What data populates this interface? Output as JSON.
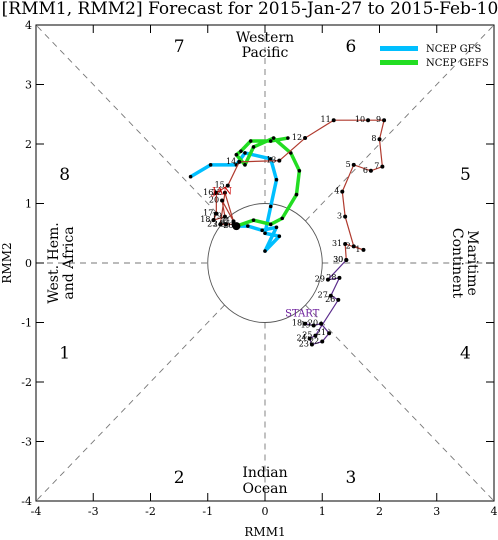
{
  "chart_data": {
    "type": "line",
    "title": "[RMM1, RMM2] Forecast for 2015-Jan-27 to 2015-Feb-10",
    "xlabel": "RMM1",
    "ylabel": "RMM2",
    "xlim": [
      -4,
      4
    ],
    "ylim": [
      -4,
      4
    ],
    "xticks": [
      -4,
      -3,
      -2,
      -1,
      0,
      1,
      2,
      3,
      4
    ],
    "yticks": [
      -4,
      -3,
      -2,
      -1,
      0,
      1,
      2,
      3,
      4
    ],
    "unit_circle_radius": 1,
    "phase_numbers": [
      {
        "label": "1",
        "x": -3.5,
        "y": -1.5
      },
      {
        "label": "2",
        "x": -1.5,
        "y": -3.6
      },
      {
        "label": "3",
        "x": 1.5,
        "y": -3.6
      },
      {
        "label": "4",
        "x": 3.5,
        "y": -1.5
      },
      {
        "label": "5",
        "x": 3.5,
        "y": 1.5
      },
      {
        "label": "6",
        "x": 1.5,
        "y": 3.65
      },
      {
        "label": "7",
        "x": -1.5,
        "y": 3.65
      },
      {
        "label": "8",
        "x": -3.5,
        "y": 1.5
      }
    ],
    "region_labels": {
      "top": [
        "Western",
        "Pacific"
      ],
      "bottom": [
        "Indian",
        "Ocean"
      ],
      "left": [
        "West. Hem.",
        "and Africa"
      ],
      "right": [
        "Maritime",
        "Continent"
      ]
    },
    "legend": {
      "placement": "top-right",
      "entries": [
        {
          "name": "NCEP GFS",
          "color": "#00bfff"
        },
        {
          "name": "NCEP GEFS",
          "color": "#22dd22"
        }
      ]
    },
    "annotations": [
      {
        "text": "START",
        "x": 0.65,
        "y": -0.9,
        "color": "#6a1b9a"
      },
      {
        "text": "JAN",
        "x": -0.75,
        "y": 1.15,
        "color": "#cc0000"
      }
    ],
    "observed": {
      "purple_color": "#5b2c8c",
      "red_color": "#b03a2e",
      "purple": [
        {
          "d": "18",
          "x": 0.7,
          "y": -1.02
        },
        {
          "d": "19",
          "x": 0.85,
          "y": -1.05
        },
        {
          "d": "20",
          "x": 0.98,
          "y": -1.02
        },
        {
          "d": "21",
          "x": 1.12,
          "y": -1.18
        },
        {
          "d": "22",
          "x": 1.0,
          "y": -1.32
        },
        {
          "d": "23",
          "x": 0.82,
          "y": -1.37
        },
        {
          "d": "24",
          "x": 0.78,
          "y": -1.27
        },
        {
          "d": "25",
          "x": 0.88,
          "y": -1.22
        },
        {
          "d": "26",
          "x": 1.28,
          "y": -0.62
        },
        {
          "d": "27",
          "x": 1.15,
          "y": -0.55
        },
        {
          "d": "28",
          "x": 1.3,
          "y": -0.25
        },
        {
          "d": "29",
          "x": 1.1,
          "y": -0.28
        },
        {
          "d": "30",
          "x": 1.42,
          "y": 0.05
        }
      ],
      "red": [
        {
          "d": "30",
          "x": 1.42,
          "y": 0.05
        },
        {
          "d": "31",
          "x": 1.4,
          "y": 0.32
        },
        {
          "d": "1",
          "x": 1.72,
          "y": 0.22
        },
        {
          "d": "2",
          "x": 1.55,
          "y": 0.28
        },
        {
          "d": "3",
          "x": 1.4,
          "y": 0.78
        },
        {
          "d": "4",
          "x": 1.35,
          "y": 1.2
        },
        {
          "d": "5",
          "x": 1.55,
          "y": 1.65
        },
        {
          "d": "6",
          "x": 1.85,
          "y": 1.55
        },
        {
          "d": "7",
          "x": 2.05,
          "y": 1.62
        },
        {
          "d": "8",
          "x": 2.0,
          "y": 2.08
        },
        {
          "d": "9",
          "x": 2.08,
          "y": 2.4
        },
        {
          "d": "10",
          "x": 1.8,
          "y": 2.4
        },
        {
          "d": "11",
          "x": 1.2,
          "y": 2.4
        },
        {
          "d": "12",
          "x": 0.7,
          "y": 2.1
        },
        {
          "d": "13",
          "x": 0.25,
          "y": 1.72
        },
        {
          "d": "14",
          "x": -0.45,
          "y": 1.7
        },
        {
          "d": "15",
          "x": -0.65,
          "y": 1.3
        },
        {
          "d": "16",
          "x": -0.85,
          "y": 1.18
        },
        {
          "d": "17",
          "x": -0.85,
          "y": 0.83
        },
        {
          "d": "18",
          "x": -0.9,
          "y": 0.72
        },
        {
          "d": "19",
          "x": -0.7,
          "y": 0.78
        },
        {
          "d": "20",
          "x": -0.75,
          "y": 1.05
        },
        {
          "d": "21",
          "x": -0.55,
          "y": 0.7
        },
        {
          "d": "22",
          "x": -0.7,
          "y": 1.18
        },
        {
          "d": "23",
          "x": -0.78,
          "y": 0.65
        },
        {
          "d": "24",
          "x": -0.68,
          "y": 0.65
        },
        {
          "d": "25",
          "x": -0.55,
          "y": 0.65
        },
        {
          "d": "26",
          "x": -0.5,
          "y": 0.62
        }
      ]
    },
    "forecasts": [
      {
        "name": "NCEP GFS",
        "color": "#00bfff",
        "points": [
          {
            "x": -0.5,
            "y": 0.62
          },
          {
            "x": -0.3,
            "y": 0.62
          },
          {
            "x": -0.05,
            "y": 0.55
          },
          {
            "x": 0.2,
            "y": 0.6
          },
          {
            "x": 0.0,
            "y": 0.2
          },
          {
            "x": 0.25,
            "y": 0.45
          },
          {
            "x": 0.0,
            "y": 0.5
          },
          {
            "x": 0.1,
            "y": 0.95
          },
          {
            "x": 0.2,
            "y": 1.4
          },
          {
            "x": 0.1,
            "y": 1.75
          },
          {
            "x": -0.35,
            "y": 1.85
          },
          {
            "x": -0.5,
            "y": 1.65
          },
          {
            "x": -0.95,
            "y": 1.65
          },
          {
            "x": -1.3,
            "y": 1.45
          }
        ]
      },
      {
        "name": "NCEP GEFS",
        "color": "#22dd22",
        "points": [
          {
            "x": -0.5,
            "y": 0.62
          },
          {
            "x": -0.2,
            "y": 0.72
          },
          {
            "x": 0.1,
            "y": 0.65
          },
          {
            "x": 0.3,
            "y": 0.75
          },
          {
            "x": 0.55,
            "y": 1.15
          },
          {
            "x": 0.6,
            "y": 1.55
          },
          {
            "x": 0.45,
            "y": 1.85
          },
          {
            "x": 0.15,
            "y": 2.1
          },
          {
            "x": -0.2,
            "y": 1.95
          },
          {
            "x": -0.35,
            "y": 1.65
          },
          {
            "x": -0.5,
            "y": 1.82
          },
          {
            "x": -0.42,
            "y": 1.88
          },
          {
            "x": -0.25,
            "y": 2.05
          },
          {
            "x": 0.1,
            "y": 2.05
          },
          {
            "x": 0.4,
            "y": 2.1
          }
        ]
      }
    ]
  }
}
